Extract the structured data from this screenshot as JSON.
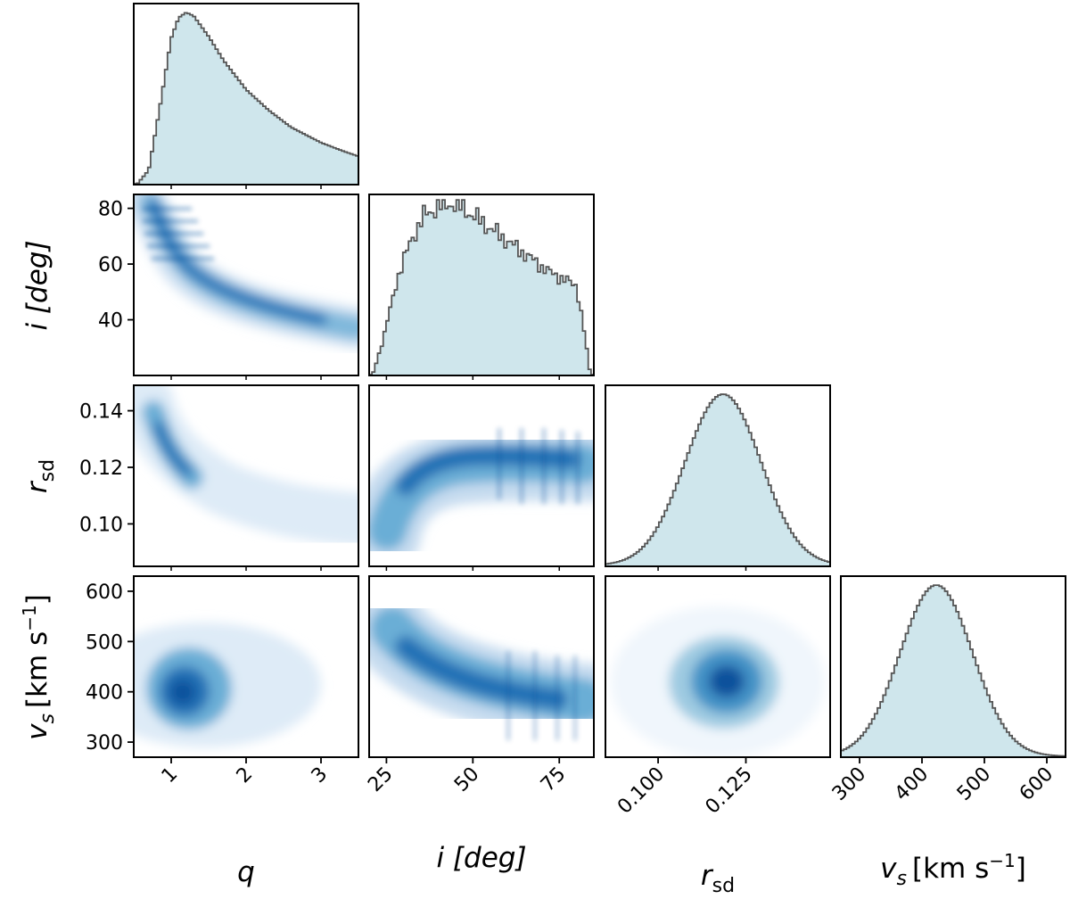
{
  "chart_data": {
    "type": "corner",
    "colors": {
      "hist_fill": "#cfe6ec",
      "hist_edge": "#555555",
      "density_low": "#f7fbff",
      "density_high": "#08306b"
    },
    "parameters": [
      {
        "id": "q",
        "label": "q",
        "range": [
          0.5,
          3.5
        ],
        "ticks": [
          1,
          2,
          3
        ],
        "tick_labels": [
          "1",
          "2",
          "3"
        ]
      },
      {
        "id": "i",
        "label": "i [deg]",
        "range": [
          20,
          85
        ],
        "ticks": [
          25,
          50,
          75
        ],
        "tick_labels": [
          "25",
          "50",
          "75"
        ],
        "y_ticks": [
          40,
          60,
          80
        ],
        "y_tick_labels": [
          "40",
          "60",
          "80"
        ]
      },
      {
        "id": "rsd",
        "label": "r",
        "label_sub": "sd",
        "range": [
          0.085,
          0.149
        ],
        "ticks": [
          0.1,
          0.125
        ],
        "tick_labels": [
          "0.100",
          "0.125"
        ],
        "y_ticks": [
          0.1,
          0.12,
          0.14
        ],
        "y_tick_labels": [
          "0.10",
          "0.12",
          "0.14"
        ]
      },
      {
        "id": "vs",
        "label": "v",
        "label_sub": "s",
        "unit": "[km s",
        "unit_sup": "−1",
        "unit_close": "]",
        "range": [
          270,
          630
        ],
        "ticks": [
          300,
          400,
          500,
          600
        ],
        "tick_labels": [
          "300",
          "400",
          "500",
          "600"
        ],
        "y_ticks": [
          300,
          400,
          500,
          600
        ],
        "y_tick_labels": [
          "300",
          "400",
          "500",
          "600"
        ]
      }
    ],
    "marginals": {
      "q": {
        "x": [
          0.55,
          0.7,
          0.85,
          1.0,
          1.1,
          1.2,
          1.3,
          1.5,
          1.7,
          2.0,
          2.3,
          2.6,
          3.0,
          3.3,
          3.5
        ],
        "density": [
          0.0,
          0.08,
          0.45,
          0.85,
          0.97,
          1.0,
          0.98,
          0.86,
          0.72,
          0.55,
          0.43,
          0.33,
          0.24,
          0.19,
          0.16
        ]
      },
      "i": {
        "x": [
          21,
          24,
          28,
          32,
          36,
          40,
          44,
          48,
          52,
          56,
          60,
          64,
          68,
          72,
          76,
          80,
          82,
          84
        ],
        "density": [
          0.0,
          0.2,
          0.55,
          0.78,
          0.93,
          0.98,
          1.0,
          0.96,
          0.9,
          0.84,
          0.78,
          0.72,
          0.66,
          0.6,
          0.56,
          0.52,
          0.28,
          0.0
        ]
      },
      "rsd": {
        "mean": 0.1185,
        "sd": 0.0108
      },
      "vs": {
        "mean": 423,
        "sd": 58
      }
    },
    "densities": [
      {
        "x": "q",
        "y": "i",
        "description": "curved ridge: i near 80 deg at q~1 falling to ~37 deg at q~3.5"
      },
      {
        "x": "q",
        "y": "rsd",
        "description": "peak near q~1.2, rsd~0.123, declining tail toward larger q"
      },
      {
        "x": "i",
        "y": "rsd",
        "description": "rsd rises from ~0.10 at i~25 to plateau ~0.12 beyond i~45"
      },
      {
        "x": "q",
        "y": "vs",
        "description": "blob centred q~1.2, vs~400 km/s"
      },
      {
        "x": "i",
        "y": "vs",
        "description": "vs decreases from ~510 at i~30 to ~390 at i~80"
      },
      {
        "x": "rsd",
        "y": "vs",
        "description": "round blob centred rsd~0.119, vs~420 km/s"
      }
    ]
  }
}
